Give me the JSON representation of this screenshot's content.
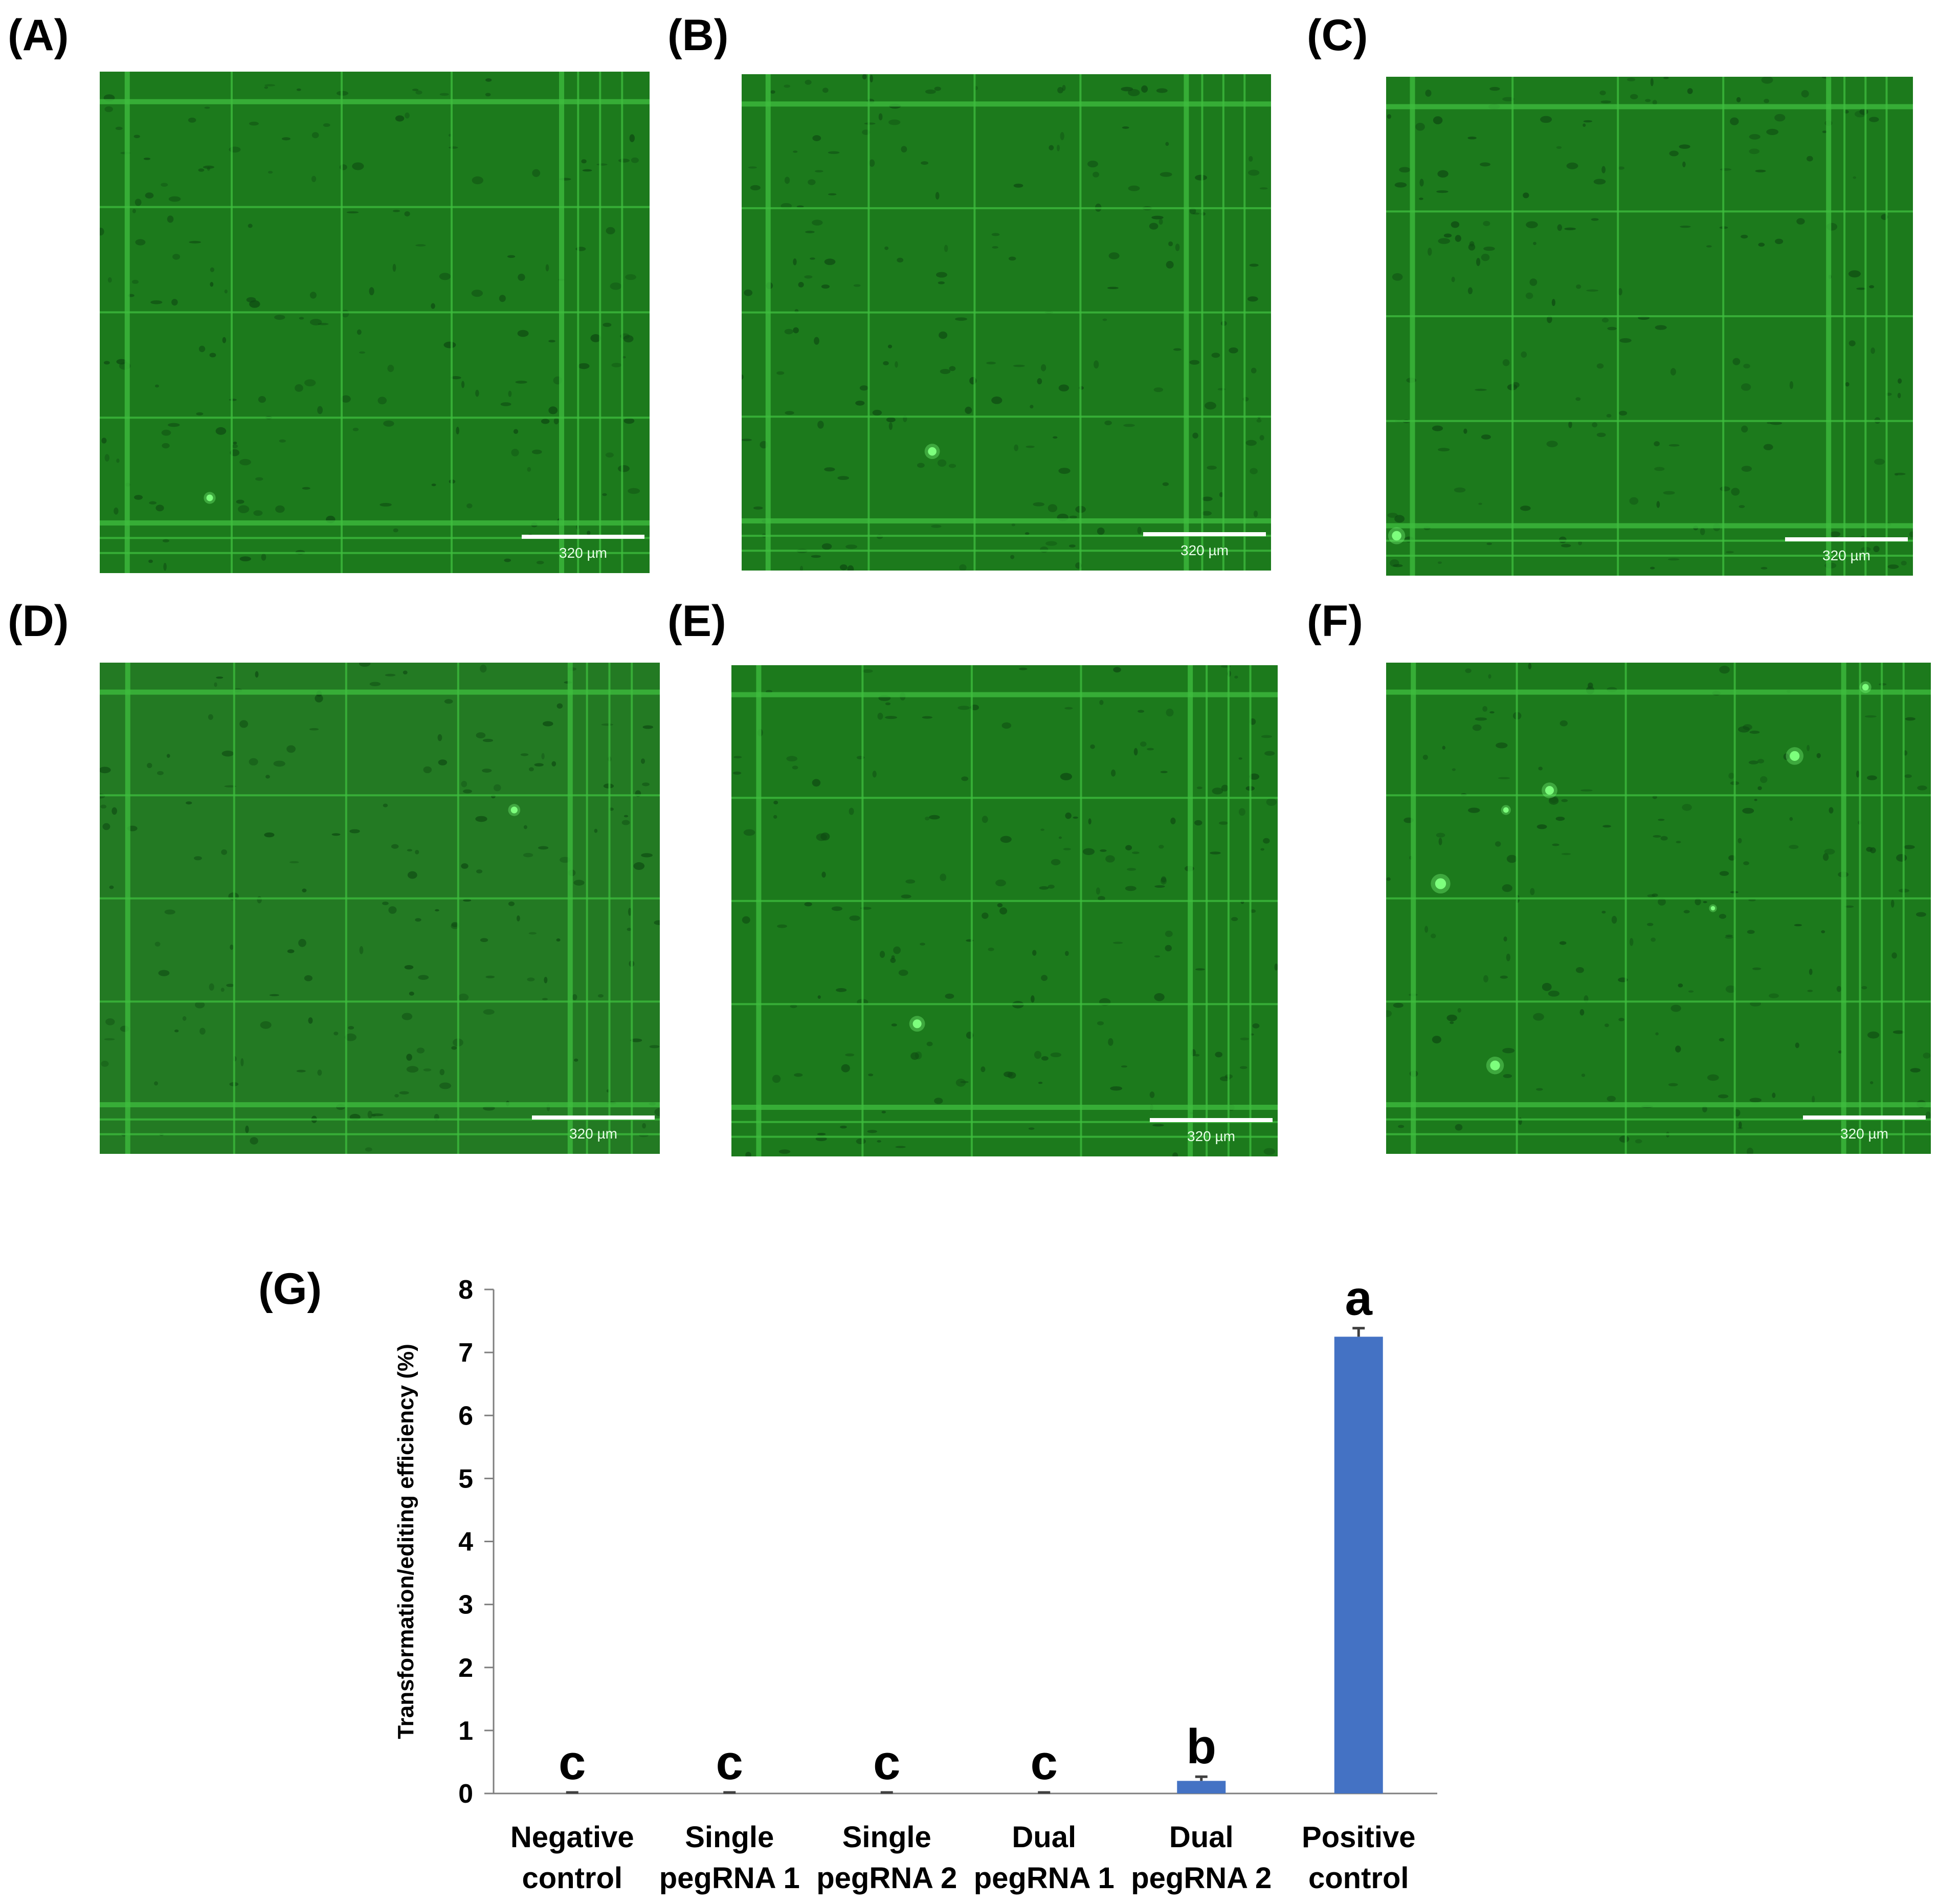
{
  "panels": [
    {
      "label": "(A)",
      "scale_bar": "320 µm"
    },
    {
      "label": "(B)",
      "scale_bar": "320 µm"
    },
    {
      "label": "(C)",
      "scale_bar": "320 µm"
    },
    {
      "label": "(D)",
      "scale_bar": "320 µm"
    },
    {
      "label": "(E)",
      "scale_bar": "320 µm"
    },
    {
      "label": "(F)",
      "scale_bar": "320 µm"
    }
  ],
  "chart_label": "(G)",
  "colors": {
    "bar": "#4472c4",
    "micrograph_bg": "#1c7a1c",
    "grid_line": "#3fbf3f",
    "fluorescent_spot": "#7dff7d"
  },
  "chart_data": {
    "type": "bar",
    "categories": [
      [
        "Negative",
        "control"
      ],
      [
        "Single",
        "pegRNA 1"
      ],
      [
        "Single",
        "pegRNA 2"
      ],
      [
        "Dual",
        "pegRNA 1"
      ],
      [
        "Dual",
        "pegRNA 2"
      ],
      [
        "Positive",
        "control"
      ]
    ],
    "values": [
      0,
      0,
      0,
      0,
      0.2,
      7.25
    ],
    "errors": [
      0,
      0,
      0,
      0,
      0.05,
      0.12
    ],
    "significance_letters": [
      "c",
      "c",
      "c",
      "c",
      "b",
      "a"
    ],
    "ylabel": "Transformation/editing efficiency (%)",
    "xlabel": "",
    "ylim": [
      0,
      8
    ],
    "yticks": [
      0,
      1,
      2,
      3,
      4,
      5,
      6,
      7,
      8
    ],
    "grid": false,
    "legend": "none"
  }
}
